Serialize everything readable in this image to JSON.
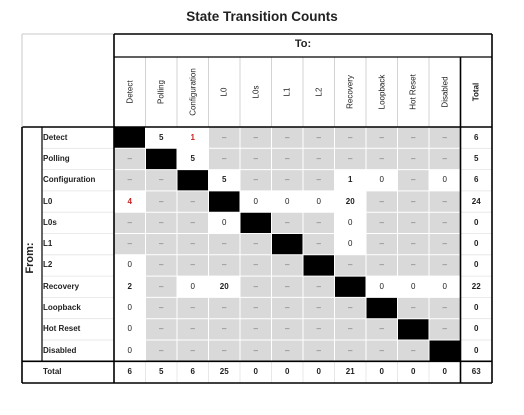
{
  "chart_data": {
    "type": "table",
    "title": "State Transition Counts",
    "col_axis_label": "To:",
    "row_axis_label": "From:",
    "states": [
      "Detect",
      "Polling",
      "Configuration",
      "L0",
      "L0s",
      "L1",
      "L2",
      "Recovery",
      "Loopback",
      "Hot Reset",
      "Disabled"
    ],
    "total_label": "Total",
    "matrix": [
      [
        null,
        "5",
        "1",
        "–",
        "–",
        "–",
        "–",
        "–",
        "–",
        "–",
        "–"
      ],
      [
        "–",
        null,
        "5",
        "–",
        "–",
        "–",
        "–",
        "–",
        "–",
        "–",
        "–"
      ],
      [
        "–",
        "–",
        null,
        "5",
        "–",
        "–",
        "–",
        "1",
        "0",
        "–",
        "0"
      ],
      [
        "4",
        "–",
        "–",
        null,
        "0",
        "0",
        "0",
        "20",
        "–",
        "–",
        "–"
      ],
      [
        "–",
        "–",
        "–",
        "0",
        null,
        "–",
        "–",
        "0",
        "–",
        "–",
        "–"
      ],
      [
        "–",
        "–",
        "–",
        "–",
        "–",
        null,
        "–",
        "0",
        "–",
        "–",
        "–"
      ],
      [
        "0",
        "–",
        "–",
        "–",
        "–",
        "–",
        null,
        "–",
        "–",
        "–",
        "–"
      ],
      [
        "2",
        "–",
        "0",
        "20",
        "–",
        "–",
        "–",
        null,
        "0",
        "0",
        "0"
      ],
      [
        "0",
        "–",
        "–",
        "–",
        "–",
        "–",
        "–",
        "–",
        null,
        "–",
        "–"
      ],
      [
        "0",
        "–",
        "–",
        "–",
        "–",
        "–",
        "–",
        "–",
        "–",
        null,
        "–"
      ],
      [
        "0",
        "–",
        "–",
        "–",
        "–",
        "–",
        "–",
        "–",
        "–",
        "–",
        null
      ]
    ],
    "row_totals": [
      "6",
      "5",
      "6",
      "24",
      "0",
      "0",
      "0",
      "22",
      "0",
      "0",
      "0"
    ],
    "col_totals": [
      "6",
      "5",
      "6",
      "25",
      "0",
      "0",
      "0",
      "21",
      "0",
      "0",
      "0"
    ],
    "grand_total": "63",
    "highlighted_cells": [
      [
        0,
        2
      ],
      [
        3,
        0
      ]
    ],
    "colors": {
      "diagonal": "#000000",
      "shaded": "#d9d9d9",
      "highlight_text": "#cc2222",
      "border": "#000000"
    }
  }
}
